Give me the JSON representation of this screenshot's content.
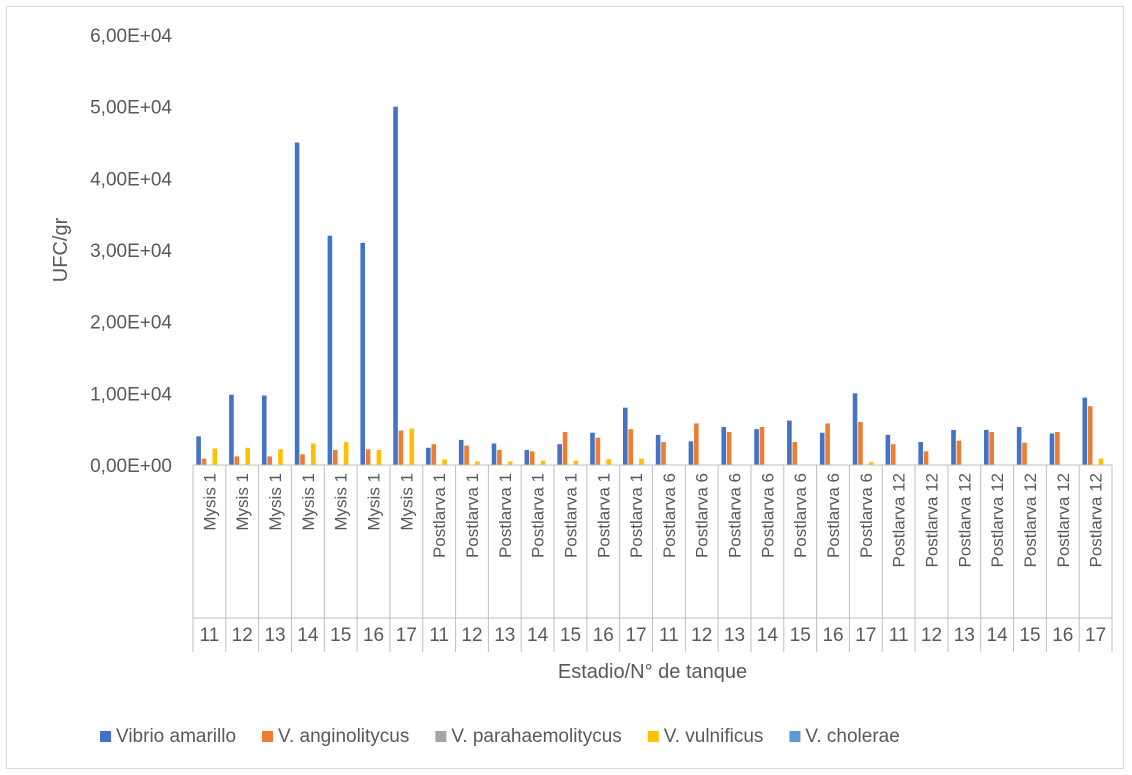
{
  "chart_data": {
    "type": "bar",
    "title": "",
    "xlabel": "Estadio/N° de tanque",
    "ylabel": "UFC/gr",
    "ylim": [
      0,
      60000
    ],
    "y_ticks": [
      0,
      10000,
      20000,
      30000,
      40000,
      50000,
      60000
    ],
    "y_tick_labels": [
      "0,00E+00",
      "1,00E+04",
      "2,00E+04",
      "3,00E+04",
      "4,00E+04",
      "5,00E+04",
      "6,00E+04"
    ],
    "grid": false,
    "legend_position": "bottom",
    "categories": [
      {
        "stage": "Mysis 1",
        "tank": "11"
      },
      {
        "stage": "Mysis 1",
        "tank": "12"
      },
      {
        "stage": "Mysis 1",
        "tank": "13"
      },
      {
        "stage": "Mysis 1",
        "tank": "14"
      },
      {
        "stage": "Mysis 1",
        "tank": "15"
      },
      {
        "stage": "Mysis 1",
        "tank": "16"
      },
      {
        "stage": "Mysis 1",
        "tank": "17"
      },
      {
        "stage": "Postlarva 1",
        "tank": "11"
      },
      {
        "stage": "Postlarva 1",
        "tank": "12"
      },
      {
        "stage": "Postlarva 1",
        "tank": "13"
      },
      {
        "stage": "Postlarva 1",
        "tank": "14"
      },
      {
        "stage": "Postlarva 1",
        "tank": "15"
      },
      {
        "stage": "Postlarva 1",
        "tank": "16"
      },
      {
        "stage": "Postlarva 1",
        "tank": "17"
      },
      {
        "stage": "Postlarva 6",
        "tank": "11"
      },
      {
        "stage": "Postlarva 6",
        "tank": "12"
      },
      {
        "stage": "Postlarva 6",
        "tank": "13"
      },
      {
        "stage": "Postlarva 6",
        "tank": "14"
      },
      {
        "stage": "Postlarva 6",
        "tank": "15"
      },
      {
        "stage": "Postlarva 6",
        "tank": "16"
      },
      {
        "stage": "Postlarva 6",
        "tank": "17"
      },
      {
        "stage": "Postlarva 12",
        "tank": "11"
      },
      {
        "stage": "Postlarva 12",
        "tank": "12"
      },
      {
        "stage": "Postlarva 12",
        "tank": "13"
      },
      {
        "stage": "Postlarva 12",
        "tank": "14"
      },
      {
        "stage": "Postlarva 12",
        "tank": "15"
      },
      {
        "stage": "Postlarva 12",
        "tank": "16"
      },
      {
        "stage": "Postlarva 12",
        "tank": "17"
      }
    ],
    "series": [
      {
        "name": "Vibrio amarillo",
        "color": "#4472C4",
        "values": [
          4000,
          9800,
          9700,
          45000,
          32000,
          31000,
          50000,
          2400,
          3500,
          3000,
          2100,
          2900,
          4500,
          8000,
          4200,
          3300,
          5300,
          5000,
          6200,
          4500,
          10000,
          4200,
          3200,
          4900,
          4900,
          5300,
          4400,
          9400
        ]
      },
      {
        "name": "V. anginolitycus",
        "color": "#ED7D31",
        "values": [
          900,
          1200,
          1200,
          1500,
          2100,
          2200,
          4800,
          2900,
          2700,
          2100,
          1900,
          4600,
          3800,
          5000,
          3200,
          5800,
          4600,
          5300,
          3200,
          5800,
          6000,
          2900,
          1900,
          3400,
          4600,
          3100,
          4600,
          8200
        ]
      },
      {
        "name": "V. parahaemolitycus",
        "color": "#A5A5A5",
        "values": [
          0,
          0,
          0,
          0,
          0,
          0,
          0,
          0,
          0,
          0,
          0,
          0,
          0,
          0,
          0,
          0,
          0,
          0,
          0,
          0,
          0,
          0,
          0,
          0,
          0,
          0,
          0,
          0
        ]
      },
      {
        "name": "V. vulnificus",
        "color": "#FFC000",
        "values": [
          2300,
          2400,
          2200,
          3000,
          3200,
          2100,
          5100,
          800,
          500,
          500,
          600,
          600,
          800,
          900,
          0,
          0,
          0,
          0,
          0,
          0,
          400,
          0,
          0,
          0,
          0,
          0,
          0,
          900
        ]
      },
      {
        "name": "V. cholerae",
        "color": "#5B9BD5",
        "values": [
          0,
          0,
          0,
          0,
          0,
          0,
          0,
          0,
          0,
          0,
          0,
          0,
          0,
          0,
          0,
          0,
          0,
          0,
          0,
          0,
          0,
          0,
          0,
          0,
          0,
          0,
          0,
          0
        ]
      }
    ]
  }
}
